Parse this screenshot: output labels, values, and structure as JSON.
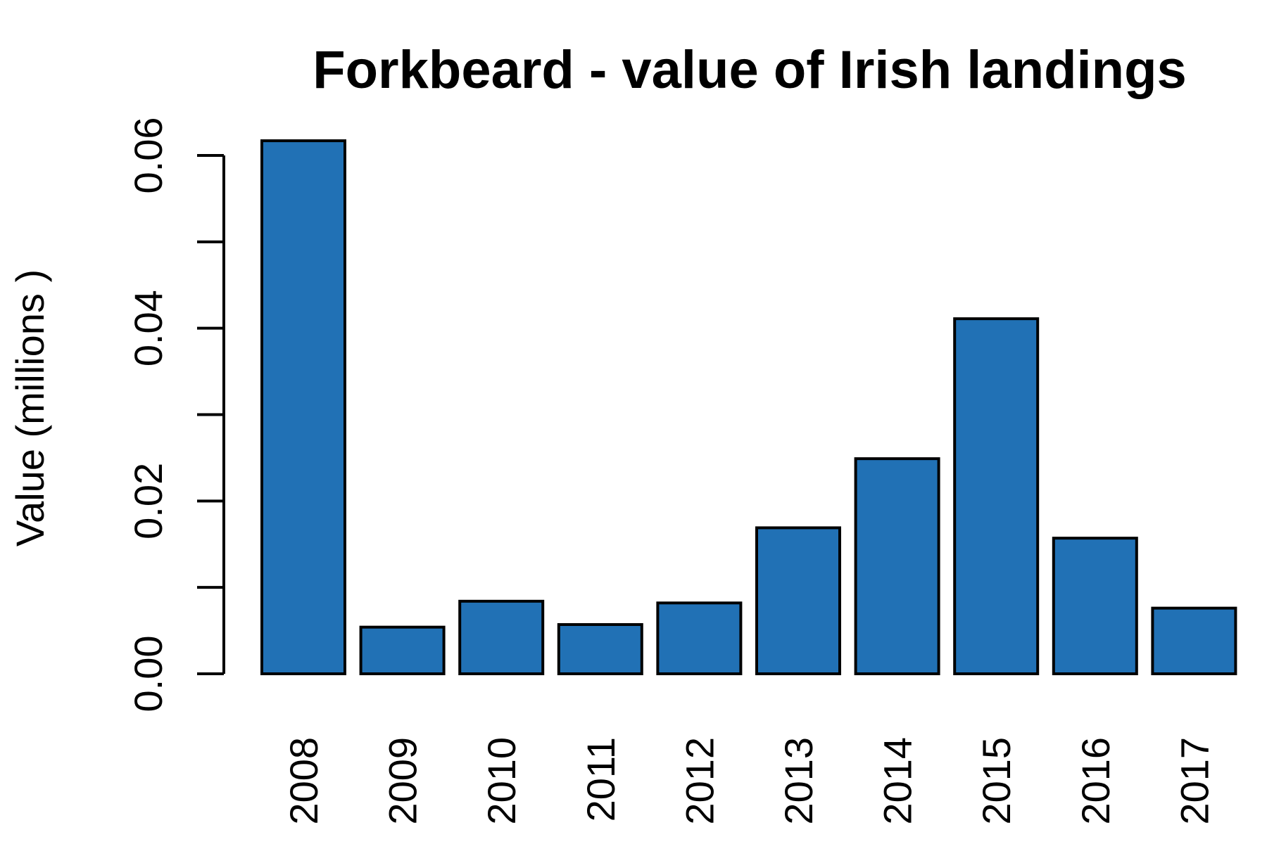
{
  "chart_data": {
    "type": "bar",
    "title": "Forkbeard - value of Irish landings",
    "xlabel": "",
    "ylabel": "Value (millions )",
    "categories": [
      "2008",
      "2009",
      "2010",
      "2011",
      "2012",
      "2013",
      "2014",
      "2015",
      "2016",
      "2017"
    ],
    "values": [
      0.0617,
      0.0054,
      0.0084,
      0.0057,
      0.0082,
      0.0169,
      0.0249,
      0.0411,
      0.0157,
      0.0076
    ],
    "ylim": [
      0,
      0.06
    ],
    "yticks": [
      0,
      0.01,
      0.02,
      0.03,
      0.04,
      0.05,
      0.06
    ],
    "ytick_labels": [
      "0.00",
      "",
      "0.02",
      "",
      "0.04",
      "",
      "0.06"
    ],
    "bar_color": "#2171b5",
    "grid": false,
    "legend": "none"
  }
}
